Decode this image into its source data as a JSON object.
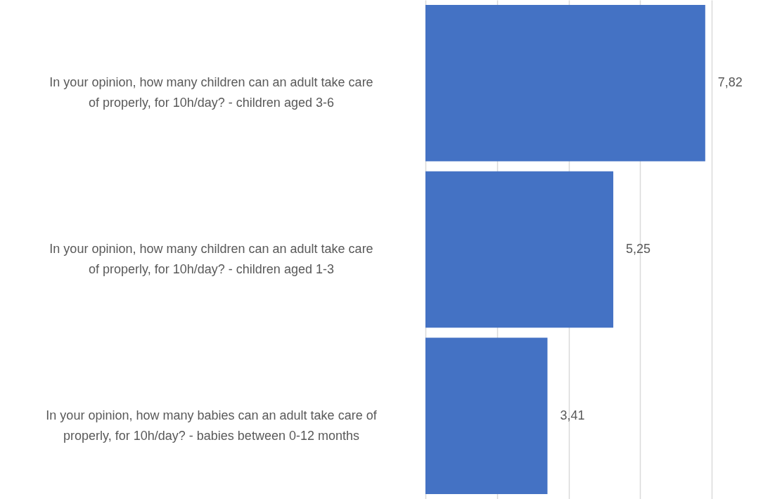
{
  "chart_data": {
    "type": "bar",
    "orientation": "horizontal",
    "categories": [
      "In your opinion, how many children can an adult take care of properly, for 10h/day? - children aged 3-6",
      "In your opinion, how many children can an adult take care of properly, for 10h/day? - children aged 1-3",
      "In your opinion, how many babies can an adult take care of properly, for 10h/day? - babies between 0-12 months"
    ],
    "values": [
      7.82,
      5.25,
      3.41
    ],
    "value_labels": [
      "7,82",
      "5,25",
      "3,41"
    ],
    "color": "#4472c4",
    "xlim": [
      0,
      8
    ],
    "xticks": [
      {
        "value": 0,
        "label": null
      },
      {
        "value": 2,
        "label": null
      },
      {
        "value": 4,
        "label": null
      },
      {
        "value": 6,
        "label": null
      },
      {
        "value": 8,
        "label": null
      }
    ],
    "grid": "x",
    "tick_labels": "y"
  }
}
